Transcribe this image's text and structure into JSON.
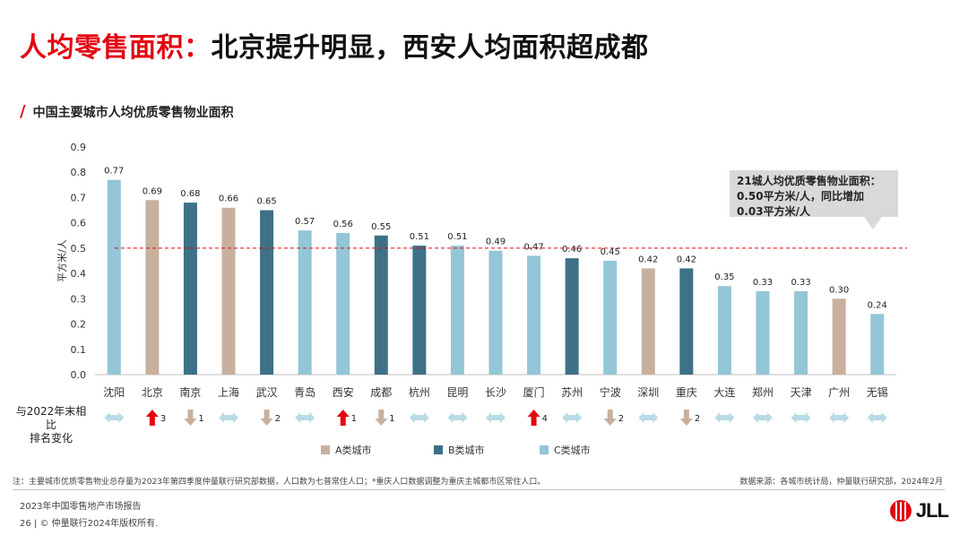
{
  "title": {
    "highlight": "人均零售面积：",
    "rest": "北京提升明显，西安人均面积超成都"
  },
  "chart_data": {
    "type": "bar",
    "title": "中国主要城市人均优质零售物业面积",
    "ylabel": "平方米/人",
    "ylim": [
      0,
      0.9
    ],
    "yticks": [
      "0.0",
      "0.1",
      "0.2",
      "0.3",
      "0.4",
      "0.5",
      "0.6",
      "0.7",
      "0.8",
      "0.9"
    ],
    "grid": false,
    "reference_line": 0.5,
    "categories": [
      "沈阳",
      "北京",
      "南京",
      "上海",
      "武汉",
      "青岛",
      "西安",
      "成都",
      "杭州",
      "昆明",
      "长沙",
      "厦门",
      "苏州",
      "宁波",
      "深圳",
      "重庆",
      "大连",
      "郑州",
      "天津",
      "广州",
      "无锡"
    ],
    "values": [
      0.77,
      0.69,
      0.68,
      0.66,
      0.65,
      0.57,
      0.56,
      0.55,
      0.51,
      0.51,
      0.49,
      0.47,
      0.46,
      0.45,
      0.42,
      0.42,
      0.35,
      0.33,
      0.33,
      0.3,
      0.24
    ],
    "value_labels": [
      "0.77",
      "0.69",
      "0.68",
      "0.66",
      "0.65",
      "0.57",
      "0.56",
      "0.55",
      "0.51",
      "0.51",
      "0.49",
      "0.47",
      "0.46",
      "0.45",
      "0.42",
      "0.42",
      "0.35",
      "0.33",
      "0.33",
      "0.30",
      "0.24"
    ],
    "city_class": [
      "C",
      "A",
      "B",
      "A",
      "B",
      "C",
      "C",
      "B",
      "B",
      "C",
      "C",
      "C",
      "B",
      "C",
      "A",
      "B",
      "C",
      "C",
      "C",
      "A",
      "C"
    ],
    "class_colors": {
      "A": "#c8b09e",
      "B": "#3e7187",
      "C": "#93c6d6"
    },
    "legend": [
      {
        "key": "A",
        "label": "A类城市"
      },
      {
        "key": "B",
        "label": "B类城市"
      },
      {
        "key": "C",
        "label": "C类城市"
      }
    ],
    "rank_change": [
      {
        "dir": "same",
        "n": ""
      },
      {
        "dir": "up",
        "n": "3"
      },
      {
        "dir": "down",
        "n": "1"
      },
      {
        "dir": "same",
        "n": ""
      },
      {
        "dir": "down",
        "n": "2"
      },
      {
        "dir": "same",
        "n": ""
      },
      {
        "dir": "up",
        "n": "1"
      },
      {
        "dir": "down",
        "n": "1"
      },
      {
        "dir": "same",
        "n": ""
      },
      {
        "dir": "same",
        "n": ""
      },
      {
        "dir": "same",
        "n": ""
      },
      {
        "dir": "up",
        "n": "4"
      },
      {
        "dir": "same",
        "n": ""
      },
      {
        "dir": "down",
        "n": "2"
      },
      {
        "dir": "same",
        "n": ""
      },
      {
        "dir": "down",
        "n": "2"
      },
      {
        "dir": "same",
        "n": ""
      },
      {
        "dir": "same",
        "n": ""
      },
      {
        "dir": "same",
        "n": ""
      },
      {
        "dir": "same",
        "n": ""
      },
      {
        "dir": "same",
        "n": ""
      }
    ],
    "rank_label": [
      "与2022年末相比",
      "排名变化"
    ],
    "callout": [
      "21城人均优质零售物业面积：",
      "0.50平方米/人，同比增加",
      "0.03平方米/人"
    ],
    "colors": {
      "up": "#e30613",
      "down": "#c8b09e",
      "same": "#b8dbe6",
      "reference": "#e30613"
    }
  },
  "footnote": "注：主要城市优质零售物业总存量为2023年第四季度仲量联行研究部数据，人口数为七普常住人口；*重庆人口数据调整为重庆主城都市区常住人口。",
  "source": "数据来源：各城市统计局，仲量联行研究部，2024年2月",
  "report": "2023年中国零售地产市场报告",
  "copyright": "26 | © 仲量联行2024年版权所有.",
  "logo": {
    "text": "JLL",
    "icon": "jll-logo-icon"
  }
}
